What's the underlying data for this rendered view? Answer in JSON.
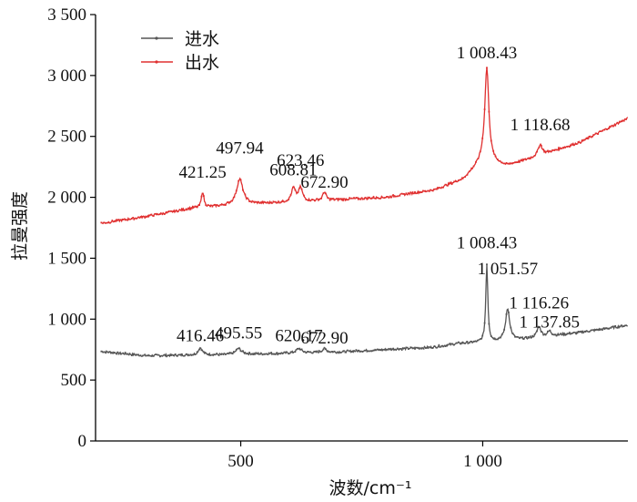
{
  "chart_data": {
    "type": "line",
    "xlabel": "波数/cm⁻¹",
    "ylabel": "拉曼强度",
    "xlim": [
      200,
      1300
    ],
    "ylim": [
      0,
      3500
    ],
    "xticks": [
      500,
      1000
    ],
    "xtick_labels": [
      "500",
      "1 000"
    ],
    "yticks": [
      0,
      500,
      1000,
      1500,
      2000,
      2500,
      3000,
      3500
    ],
    "ytick_labels": [
      "0",
      "500",
      "1 000",
      "1 500",
      "2 000",
      "2 500",
      "3 000",
      "3 500"
    ],
    "legend_position": "top-left",
    "series": [
      {
        "name": "进水",
        "color": "#555555",
        "baseline": [
          [
            200,
            740
          ],
          [
            300,
            700
          ],
          [
            500,
            710
          ],
          [
            700,
            730
          ],
          [
            900,
            770
          ],
          [
            950,
            800
          ],
          [
            1000,
            810
          ],
          [
            1100,
            840
          ],
          [
            1200,
            890
          ],
          [
            1300,
            950
          ]
        ],
        "peaks": [
          {
            "x": 416.46,
            "height": 60,
            "width": 5
          },
          {
            "x": 495.55,
            "height": 50,
            "width": 7
          },
          {
            "x": 620.17,
            "height": 35,
            "width": 7
          },
          {
            "x": 672.9,
            "height": 30,
            "width": 5
          },
          {
            "x": 1008.43,
            "height": 640,
            "width": 2.5
          },
          {
            "x": 1051.57,
            "height": 260,
            "width": 5
          },
          {
            "x": 1116.26,
            "height": 90,
            "width": 5
          },
          {
            "x": 1137.85,
            "height": 40,
            "width": 5
          }
        ],
        "labels": [
          {
            "x": 416.46,
            "y": 820,
            "text": "416.46"
          },
          {
            "x": 495.55,
            "y": 840,
            "text": "495.55"
          },
          {
            "x": 620.17,
            "y": 820,
            "text": "620.17"
          },
          {
            "x": 672.9,
            "y": 800,
            "text": "672.90"
          },
          {
            "x": 1008.43,
            "y": 1580,
            "text": "1 008.43"
          },
          {
            "x": 1051.57,
            "y": 1370,
            "text": "1 051.57"
          },
          {
            "x": 1116.26,
            "y": 1090,
            "text": "1 116.26"
          },
          {
            "x": 1137.85,
            "y": 930,
            "text": "1 137.85"
          }
        ]
      },
      {
        "name": "出水",
        "color": "#e03030",
        "baseline": [
          [
            200,
            1780
          ],
          [
            300,
            1840
          ],
          [
            400,
            1910
          ],
          [
            500,
            1940
          ],
          [
            600,
            1960
          ],
          [
            700,
            1980
          ],
          [
            800,
            2000
          ],
          [
            900,
            2060
          ],
          [
            960,
            2150
          ],
          [
            1000,
            2300
          ],
          [
            1050,
            2260
          ],
          [
            1100,
            2320
          ],
          [
            1200,
            2450
          ],
          [
            1300,
            2650
          ]
        ],
        "peaks": [
          {
            "x": 421.25,
            "height": 130,
            "width": 3
          },
          {
            "x": 497.94,
            "height": 210,
            "width": 8
          },
          {
            "x": 608.81,
            "height": 110,
            "width": 5
          },
          {
            "x": 623.46,
            "height": 110,
            "width": 5
          },
          {
            "x": 672.9,
            "height": 70,
            "width": 4
          },
          {
            "x": 1008.43,
            "height": 770,
            "width": 5
          },
          {
            "x": 1118.68,
            "height": 90,
            "width": 5
          }
        ],
        "labels": [
          {
            "x": 421.25,
            "y": 2160,
            "text": "421.25"
          },
          {
            "x": 497.94,
            "y": 2360,
            "text": "497.94"
          },
          {
            "x": 608.81,
            "y": 2180,
            "text": "608.81"
          },
          {
            "x": 623.46,
            "y": 2260,
            "text": "623.46"
          },
          {
            "x": 672.9,
            "y": 2080,
            "text": "672.90"
          },
          {
            "x": 1008.43,
            "y": 3140,
            "text": "1 008.43"
          },
          {
            "x": 1118.68,
            "y": 2550,
            "text": "1 118.68"
          }
        ]
      }
    ]
  }
}
